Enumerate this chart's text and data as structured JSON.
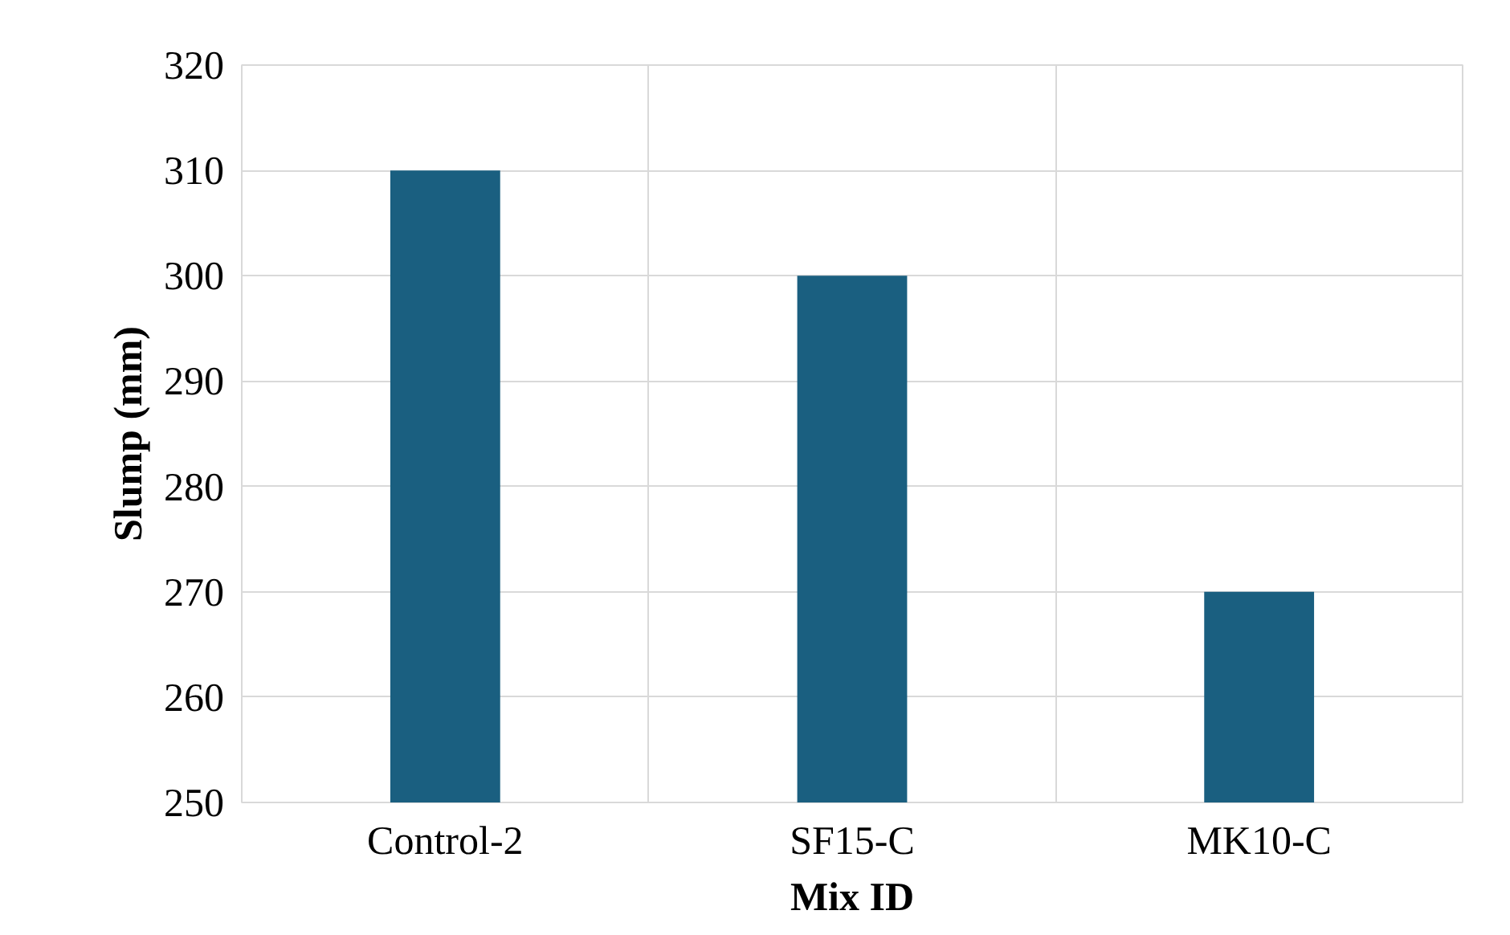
{
  "chart_data": {
    "type": "bar",
    "xlabel": "Mix ID",
    "ylabel": "Slump (mm)",
    "categories": [
      "Control-2",
      "SF15-C",
      "MK10-C"
    ],
    "values": [
      310,
      300,
      270
    ],
    "color": "#1a5f80",
    "ylim": [
      250,
      320
    ],
    "yticks": [
      250,
      260,
      270,
      280,
      290,
      300,
      310,
      320
    ],
    "grid": true
  }
}
